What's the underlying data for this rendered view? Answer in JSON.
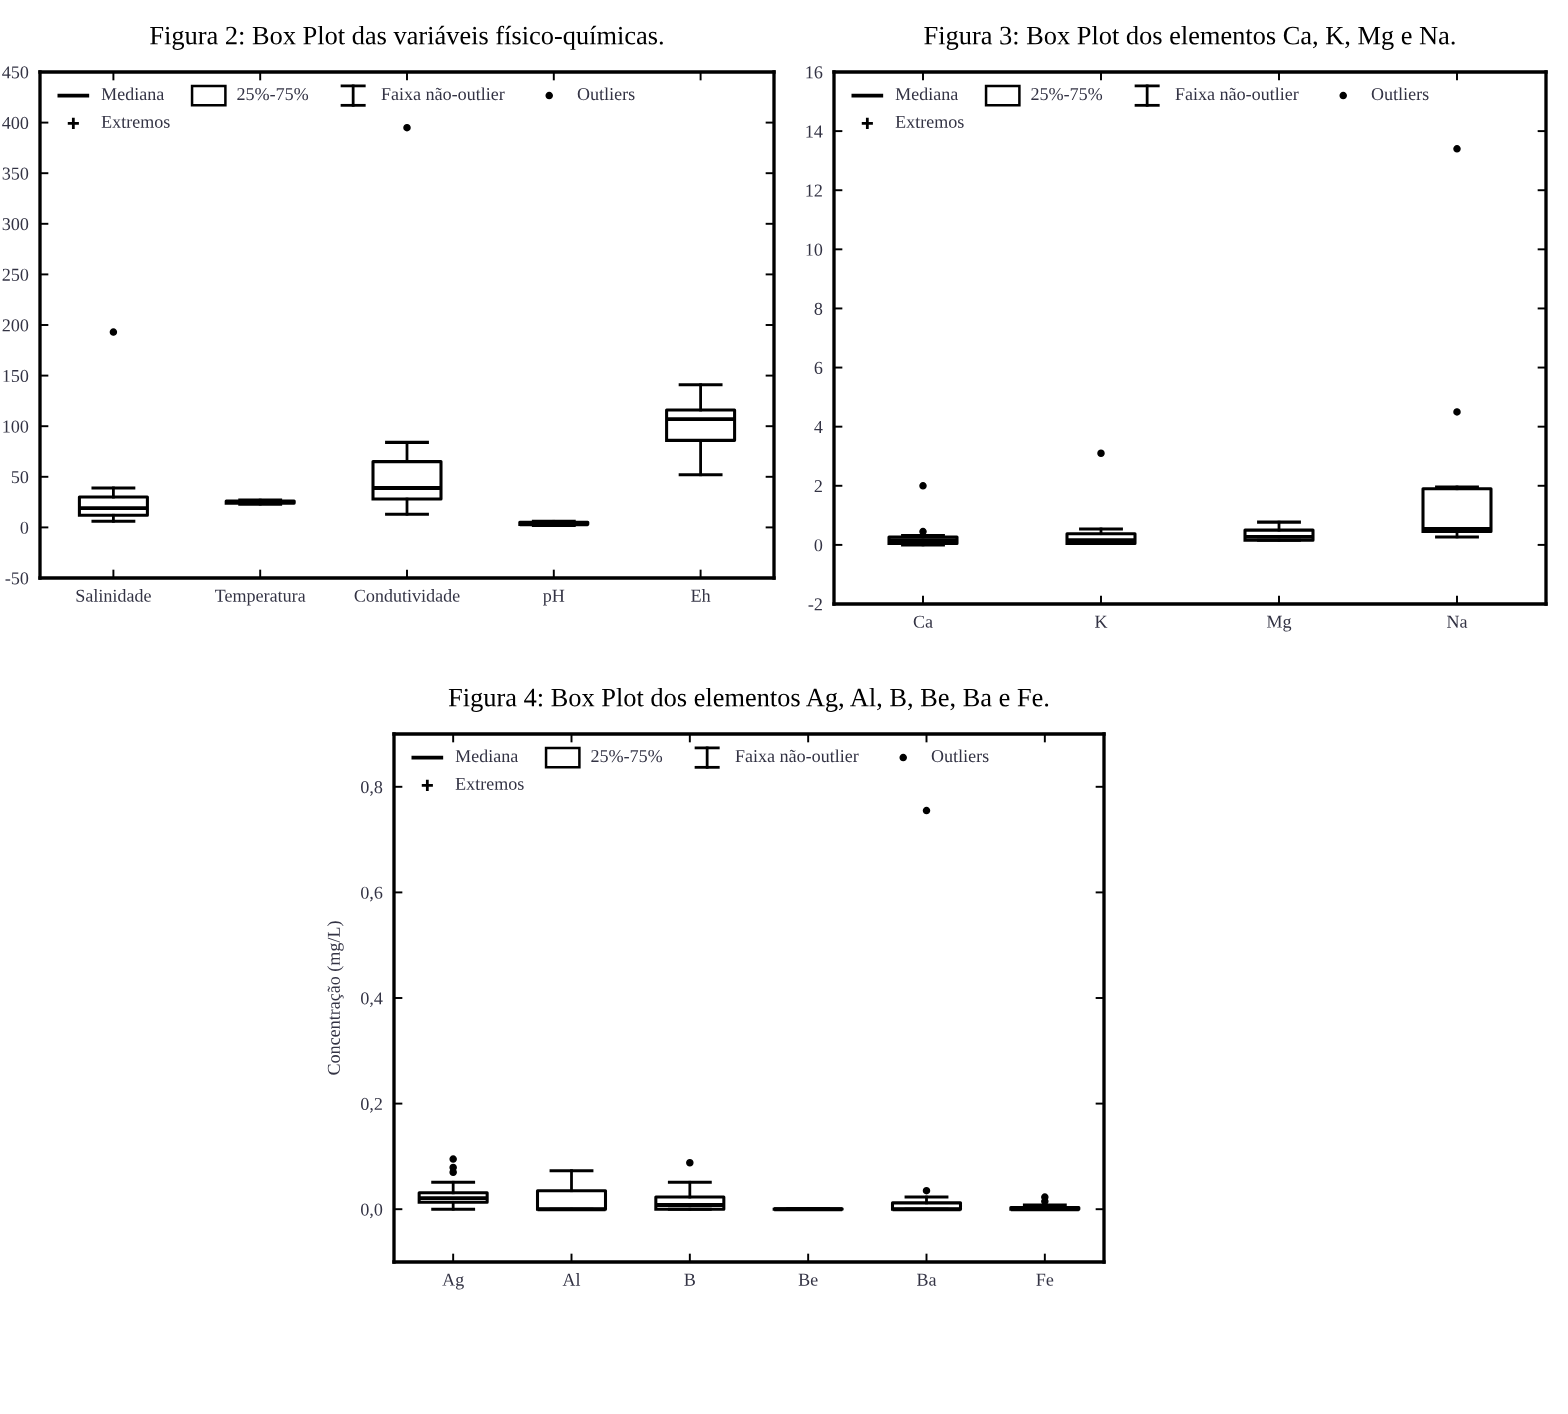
{
  "chart_data": [
    {
      "type": "box",
      "title": "Figura 2: Box Plot das variáveis físico-químicas.",
      "categories": [
        "Salinidade",
        "Temperatura",
        "Condutividade",
        "pH",
        "Eh"
      ],
      "boxes": [
        {
          "low": 6,
          "q1": 12,
          "median": 19,
          "q3": 30,
          "high": 39,
          "outliers": [
            193
          ]
        },
        {
          "low": 23,
          "q1": 24,
          "median": 25,
          "q3": 26,
          "high": 27
        },
        {
          "low": 13,
          "q1": 28,
          "median": 39,
          "q3": 65,
          "high": 84,
          "outliers": [
            395
          ]
        },
        {
          "low": 2,
          "q1": 3,
          "median": 3,
          "q3": 5,
          "high": 6
        },
        {
          "low": 52,
          "q1": 86,
          "median": 107,
          "q3": 116,
          "high": 141
        }
      ],
      "ylim": [
        -50,
        450
      ],
      "yticks": [
        -50,
        0,
        50,
        100,
        150,
        200,
        250,
        300,
        350,
        400,
        450
      ],
      "annotations": [
        "Mediana",
        "25%-75%",
        "Faixa não-outlier",
        "Outliers",
        "Extremos"
      ]
    },
    {
      "type": "box",
      "title": "Figura 3: Box Plot dos elementos Ca, K, Mg e Na.",
      "categories": [
        "Ca",
        "K",
        "Mg",
        "Na"
      ],
      "boxes": [
        {
          "low": 0.0,
          "q1": 0.05,
          "median": 0.16,
          "q3": 0.27,
          "high": 0.32,
          "outliers": [
            0.45,
            2.0
          ]
        },
        {
          "low": 0.05,
          "q1": 0.05,
          "median": 0.16,
          "q3": 0.38,
          "high": 0.54,
          "outliers": [
            3.1
          ]
        },
        {
          "low": 0.16,
          "q1": 0.16,
          "median": 0.27,
          "q3": 0.5,
          "high": 0.77
        },
        {
          "low": 0.27,
          "q1": 0.45,
          "median": 0.54,
          "q3": 1.9,
          "high": 1.96,
          "outliers": [
            4.5,
            13.4
          ]
        }
      ],
      "ylim": [
        -2,
        16
      ],
      "yticks": [
        -2,
        0,
        2,
        4,
        6,
        8,
        10,
        12,
        14,
        16
      ],
      "annotations": [
        "Mediana",
        "25%-75%",
        "Faixa não-outlier",
        "Outliers",
        "Extremos"
      ]
    },
    {
      "type": "box",
      "title": "Figura 4: Box Plot dos elementos Ag, Al, B, Be, Ba e Fe.",
      "ylabel": "Concentração (mg/L)",
      "categories": [
        "Ag",
        "Al",
        "B",
        "Be",
        "Ba",
        "Fe"
      ],
      "boxes": [
        {
          "low": 0.0,
          "q1": 0.013,
          "median": 0.021,
          "q3": 0.031,
          "high": 0.051,
          "outliers": [
            0.07,
            0.079,
            0.095
          ]
        },
        {
          "low": 0.0,
          "q1": 0.0,
          "median": 0.0,
          "q3": 0.035,
          "high": 0.073
        },
        {
          "low": 0.0,
          "q1": 0.0,
          "median": 0.008,
          "q3": 0.023,
          "high": 0.051,
          "outliers": [
            0.088
          ]
        },
        {
          "low": 0.0,
          "q1": 0.0,
          "median": 0.0,
          "q3": 0.001,
          "high": 0.001
        },
        {
          "low": 0.0,
          "q1": 0.0,
          "median": 0.0,
          "q3": 0.012,
          "high": 0.023,
          "outliers": [
            0.035,
            0.755
          ]
        },
        {
          "low": 0.0,
          "q1": 0.0,
          "median": 0.0,
          "q3": 0.003,
          "high": 0.008,
          "outliers": [
            0.015,
            0.023
          ]
        }
      ],
      "ylim": [
        -0.1,
        0.9
      ],
      "yticks": [
        {
          "value": 0.0,
          "label": "0,0"
        },
        {
          "value": 0.2,
          "label": "0,2"
        },
        {
          "value": 0.4,
          "label": "0,4"
        },
        {
          "value": 0.6,
          "label": "0,6"
        },
        {
          "value": 0.8,
          "label": "0,8"
        }
      ],
      "annotations": [
        "Mediana",
        "25%-75%",
        "Faixa não-outlier",
        "Outliers",
        "Extremos"
      ]
    }
  ]
}
